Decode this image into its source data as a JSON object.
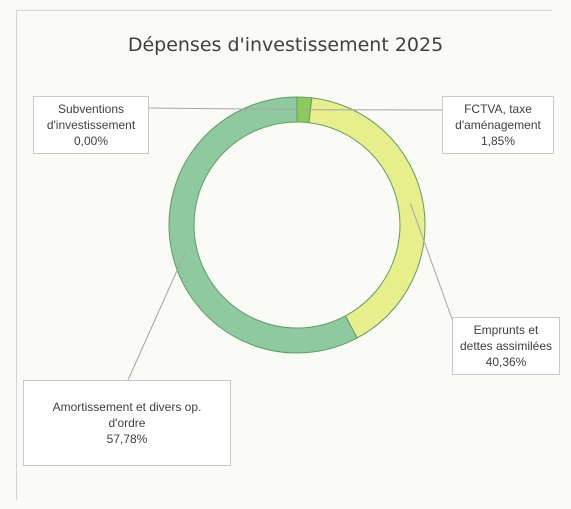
{
  "chart_data": {
    "type": "pie",
    "variant": "donut",
    "title": "Dépenses d'investissement 2025",
    "slices": [
      {
        "label_lines": [
          "Subventions",
          "d'investissement"
        ],
        "value_text": "0,00%",
        "value": 0.0,
        "color": "#2e8b57"
      },
      {
        "label_lines": [
          "FCTVA, taxe",
          "d'aménagement"
        ],
        "value_text": "1,85%",
        "value": 1.85,
        "color": "#8fc85a"
      },
      {
        "label_lines": [
          "Emprunts et",
          "dettes assimilées"
        ],
        "value_text": "40,36%",
        "value": 40.36,
        "color": "#e6ef8c"
      },
      {
        "label_lines": [
          "Amortissement et divers op.",
          "d'ordre"
        ],
        "value_text": "57,78%",
        "value": 57.78,
        "color": "#8fc9a0"
      }
    ],
    "legend": "none"
  }
}
